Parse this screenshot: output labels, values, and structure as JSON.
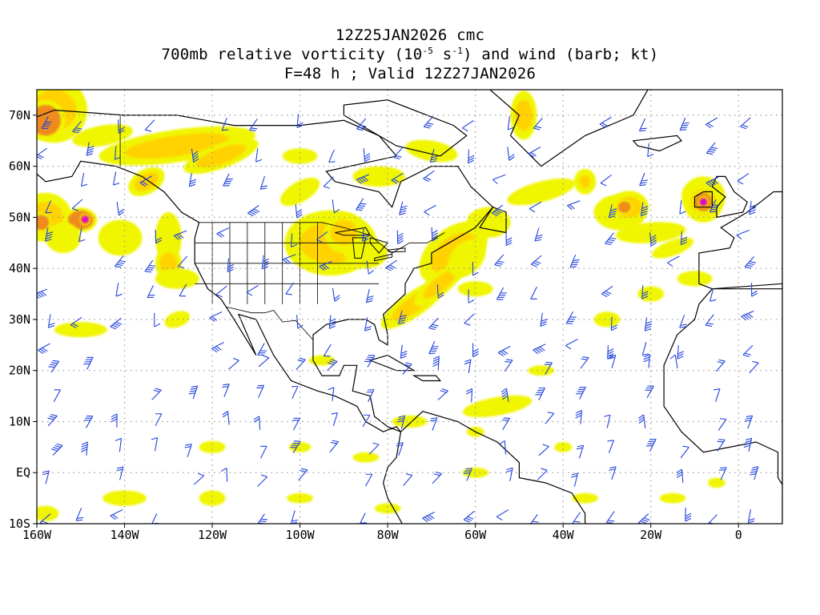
{
  "title": {
    "line1": "12Z25JAN2026 cmc",
    "line2_prefix": "700mb relative vorticity (10",
    "line2_exp1": "-5",
    "line2_mid": " s",
    "line2_exp2": "-1",
    "line2_suffix": ") and wind (barb; kt)",
    "line3": "F=48 h ; Valid 12Z27JAN2026"
  },
  "axes": {
    "lat_labels": [
      "70N",
      "60N",
      "50N",
      "40N",
      "30N",
      "20N",
      "10N",
      "EQ",
      "10S"
    ],
    "lon_labels": [
      "160W",
      "140W",
      "120W",
      "100W",
      "80W",
      "60W",
      "40W",
      "20W",
      "0"
    ]
  },
  "map": {
    "lon_range": [
      -160,
      10
    ],
    "lat_range": [
      -10,
      75
    ],
    "grid": "dotted",
    "colors": {
      "frame": "#000000",
      "grid": "#9a9a9a",
      "coast": "#000000",
      "barb": "#2244dd",
      "vort_low": "#f0f500",
      "vort_mid": "#ffd200",
      "vort_high": "#f08a1e",
      "vort_max": "#e0285a",
      "vort_peak": "#e000c8"
    }
  }
}
